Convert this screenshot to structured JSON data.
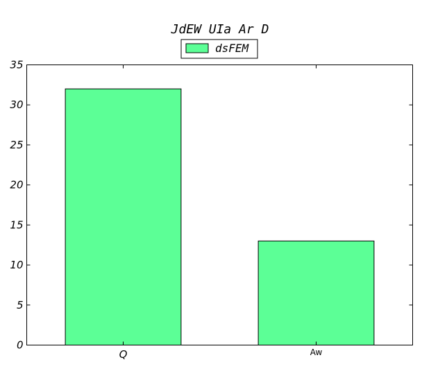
{
  "chart_data": {
    "type": "bar",
    "title": "JdEW UIa Ar D",
    "xlabel": "",
    "ylabel": "",
    "categories": [
      "Q",
      "Aw"
    ],
    "series": [
      {
        "name": "dsFEM",
        "values": [
          32,
          13
        ],
        "color": "#5cff96"
      }
    ],
    "ylim": [
      0,
      35
    ],
    "yticks": [
      0,
      5,
      10,
      15,
      20,
      25,
      30,
      35
    ],
    "grid": false,
    "legend": "top-center"
  }
}
